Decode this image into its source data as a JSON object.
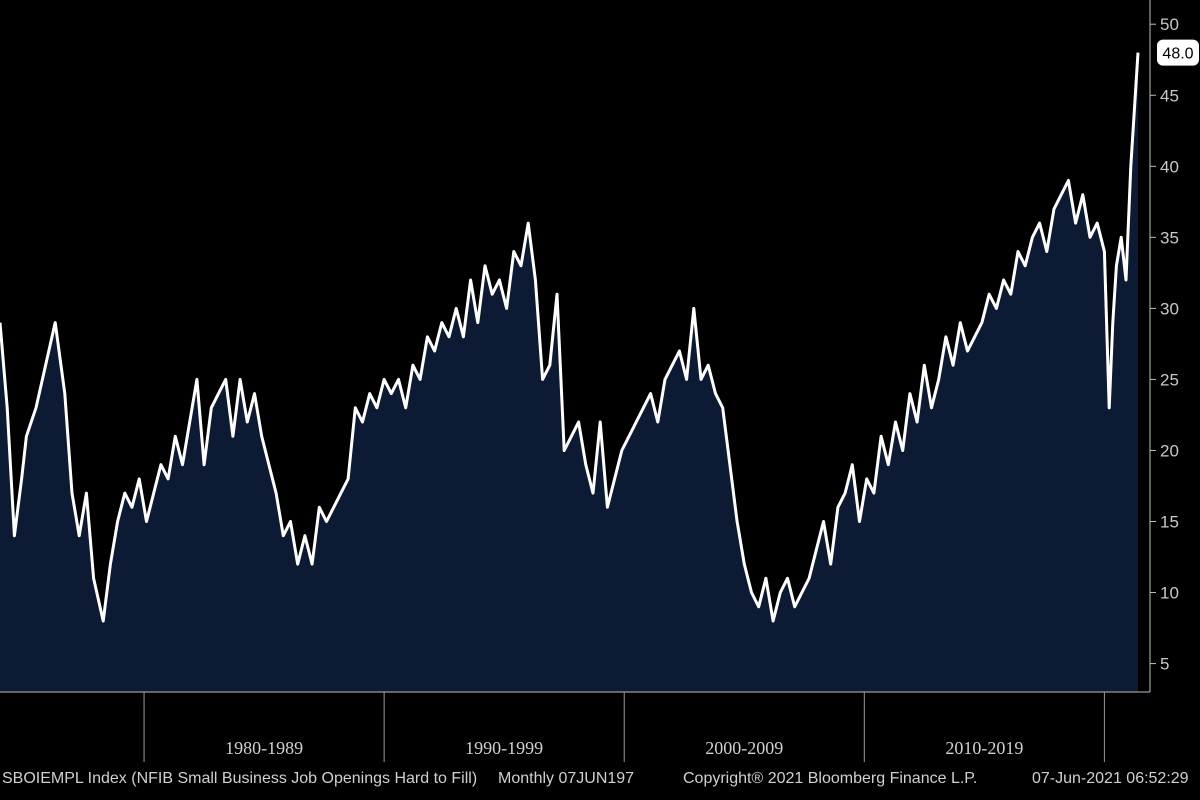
{
  "chart_data": {
    "type": "area",
    "x_range": [
      1974.0,
      2021.4
    ],
    "ylim": [
      3,
      51
    ],
    "grid": false,
    "fill_color": "#0d1a33",
    "line_color": "#ffffff",
    "background": "#000000",
    "y_ticks": [
      5,
      10,
      15,
      20,
      25,
      30,
      35,
      40,
      45,
      50
    ],
    "decade_labels": [
      "1980-1989",
      "1990-1999",
      "2000-2009",
      "2010-2019"
    ],
    "decade_boundaries": [
      1980,
      1990,
      2000,
      2010,
      2020
    ],
    "last_value_label": "48.0",
    "series": [
      {
        "x": [
          1974.0,
          1974.3,
          1974.6,
          1974.9,
          1975.1,
          1975.5,
          1975.9,
          1976.3,
          1976.7,
          1977.0,
          1977.3,
          1977.6,
          1977.9,
          1978.3,
          1978.6,
          1978.9,
          1979.2,
          1979.5,
          1979.8,
          1980.1,
          1980.4,
          1980.7,
          1981.0,
          1981.3,
          1981.6,
          1981.9,
          1982.2,
          1982.5,
          1982.8,
          1983.1,
          1983.4,
          1983.7,
          1984.0,
          1984.3,
          1984.6,
          1984.9,
          1985.2,
          1985.5,
          1985.8,
          1986.1,
          1986.4,
          1986.7,
          1987.0,
          1987.3,
          1987.6,
          1987.9,
          1988.2,
          1988.5,
          1988.8,
          1989.1,
          1989.4,
          1989.7,
          1990.0,
          1990.3,
          1990.6,
          1990.9,
          1991.2,
          1991.5,
          1991.8,
          1992.1,
          1992.4,
          1992.7,
          1993.0,
          1993.3,
          1993.6,
          1993.9,
          1994.2,
          1994.5,
          1994.8,
          1995.1,
          1995.4,
          1995.7,
          1996.0,
          1996.3,
          1996.6,
          1996.9,
          1997.2,
          1997.5,
          1997.8,
          1998.1,
          1998.4,
          1998.7,
          1999.0,
          1999.3,
          1999.6,
          1999.9,
          2000.2,
          2000.5,
          2000.8,
          2001.1,
          2001.4,
          2001.7,
          2002.0,
          2002.3,
          2002.6,
          2002.9,
          2003.2,
          2003.5,
          2003.8,
          2004.1,
          2004.4,
          2004.7,
          2005.0,
          2005.3,
          2005.6,
          2005.9,
          2006.2,
          2006.5,
          2006.8,
          2007.1,
          2007.4,
          2007.7,
          2008.0,
          2008.3,
          2008.6,
          2008.9,
          2009.2,
          2009.5,
          2009.8,
          2010.1,
          2010.4,
          2010.7,
          2011.0,
          2011.3,
          2011.6,
          2011.9,
          2012.2,
          2012.5,
          2012.8,
          2013.1,
          2013.4,
          2013.7,
          2014.0,
          2014.3,
          2014.6,
          2014.9,
          2015.2,
          2015.5,
          2015.8,
          2016.1,
          2016.4,
          2016.7,
          2017.0,
          2017.3,
          2017.6,
          2017.9,
          2018.2,
          2018.5,
          2018.8,
          2019.1,
          2019.4,
          2019.7,
          2020.0,
          2020.2,
          2020.35,
          2020.5,
          2020.7,
          2020.9,
          2021.1,
          2021.25,
          2021.4
        ],
        "y": [
          29,
          23,
          14,
          18,
          21,
          23,
          26,
          29,
          24,
          17,
          14,
          17,
          11,
          8,
          12,
          15,
          17,
          16,
          18,
          15,
          17,
          19,
          18,
          21,
          19,
          22,
          25,
          19,
          23,
          24,
          25,
          21,
          25,
          22,
          24,
          21,
          19,
          17,
          14,
          15,
          12,
          14,
          12,
          16,
          15,
          16,
          17,
          18,
          23,
          22,
          24,
          23,
          25,
          24,
          25,
          23,
          26,
          25,
          28,
          27,
          29,
          28,
          30,
          28,
          32,
          29,
          33,
          31,
          32,
          30,
          34,
          33,
          36,
          32,
          25,
          26,
          31,
          20,
          21,
          22,
          19,
          17,
          22,
          16,
          18,
          20,
          21,
          22,
          23,
          24,
          22,
          25,
          26,
          27,
          25,
          30,
          25,
          26,
          24,
          23,
          19,
          15,
          12,
          10,
          9,
          11,
          8,
          10,
          11,
          9,
          10,
          11,
          13,
          15,
          12,
          16,
          17,
          19,
          15,
          18,
          17,
          21,
          19,
          22,
          20,
          24,
          22,
          26,
          23,
          25,
          28,
          26,
          29,
          27,
          28,
          29,
          31,
          30,
          32,
          31,
          34,
          33,
          35,
          36,
          34,
          37,
          38,
          39,
          36,
          38,
          35,
          36,
          34,
          23,
          29,
          33,
          35,
          32,
          40,
          44,
          48
        ]
      }
    ]
  },
  "footer": {
    "ticker": "SBOIEMPL Index (NFIB Small Business Job Openings Hard to Fill)",
    "frequency": "Monthly 07JUN197",
    "copyright": "Copyright® 2021 Bloomberg Finance L.P.",
    "timestamp": "07-Jun-2021 06:52:29"
  }
}
